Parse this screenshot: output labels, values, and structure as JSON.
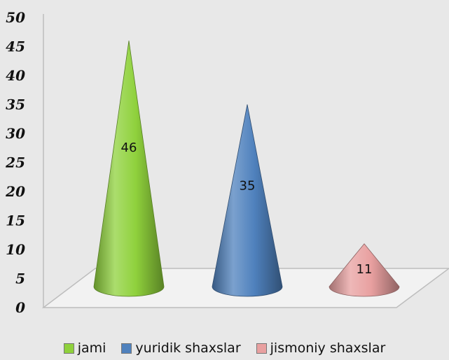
{
  "chart_data": {
    "type": "bar",
    "shape": "cone",
    "title": "",
    "xlabel": "",
    "ylabel": "",
    "categories": [
      "jami",
      "yuridik shaxslar",
      "jismoniy shaxslar"
    ],
    "values": [
      46,
      35,
      11
    ],
    "ylim": [
      0,
      50
    ],
    "yticks": [
      "0",
      "5",
      "10",
      "15",
      "20",
      "25",
      "30",
      "35",
      "40",
      "45",
      "50"
    ],
    "data_labels": [
      "46",
      "35",
      "11"
    ],
    "colors": [
      "#8fd13c",
      "#4f81bd",
      "#e8a0a0"
    ],
    "legend_position": "bottom",
    "legend": [
      "jami",
      "yuridik shaxslar",
      "jismoniy shaxslar"
    ],
    "grid": false
  }
}
